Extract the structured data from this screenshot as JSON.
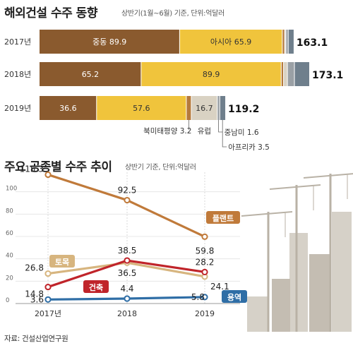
{
  "top": {
    "title": "해외건설 수주 동향",
    "note": "상반기(1월~6월) 기준, 단위:억달러"
  },
  "bottom": {
    "title": "주요 공종별 수주 추이",
    "note": "상반기 기준, 단위:억달러"
  },
  "source": "자료: 건설산업연구원",
  "colors": {
    "middle_east": "#8a5a2e",
    "asia": "#f0c43c",
    "north_america_pacific": "#b57a3c",
    "europe": "#d9d2c3",
    "latin_america": "#9aa0a5",
    "africa": "#6f7f8c",
    "plant": "#c07a3a",
    "civil": "#d7b57f",
    "building": "#c0242a",
    "service": "#2f6ea6"
  },
  "chart_data": [
    {
      "type": "bar",
      "orientation": "horizontal",
      "stacked": true,
      "categories": [
        "2017년",
        "2018년",
        "2019년"
      ],
      "series": [
        {
          "name": "중동",
          "values": [
            89.9,
            65.2,
            36.6
          ],
          "color_key": "middle_east"
        },
        {
          "name": "아시아",
          "values": [
            65.9,
            89.9,
            57.6
          ],
          "color_key": "asia"
        },
        {
          "name": "북미·태평양",
          "values": [
            1.5,
            1.5,
            3.2
          ],
          "color_key": "north_america_pacific"
        },
        {
          "name": "유럽",
          "values": [
            0.8,
            2.5,
            16.7
          ],
          "color_key": "europe"
        },
        {
          "name": "중남미",
          "values": [
            1.5,
            4.5,
            1.6
          ],
          "color_key": "latin_america"
        },
        {
          "name": "아프리카",
          "values": [
            3.5,
            9.5,
            3.5
          ],
          "color_key": "africa"
        }
      ],
      "totals": [
        "163.1",
        "173.1",
        "119.2"
      ],
      "inbar_labels": [
        {
          "row": 0,
          "series": 0,
          "text": "중동  89.9"
        },
        {
          "row": 0,
          "series": 1,
          "text": "아시아  65.9"
        },
        {
          "row": 1,
          "series": 0,
          "text": "65.2"
        },
        {
          "row": 1,
          "series": 1,
          "text": "89.9"
        },
        {
          "row": 2,
          "series": 0,
          "text": "36.6"
        },
        {
          "row": 2,
          "series": 1,
          "text": "57.6"
        },
        {
          "row": 2,
          "series": 3,
          "text": "16.7"
        }
      ],
      "callouts": [
        {
          "series": 2,
          "text": "북미태평양 3.2"
        },
        {
          "series": 3,
          "text": "유럽"
        },
        {
          "series": 4,
          "text": "중남미 1.6"
        },
        {
          "series": 5,
          "text": "아프리카 3.5"
        }
      ],
      "xlim": [
        0,
        173.1
      ]
    },
    {
      "type": "line",
      "categories": [
        "2017년",
        "2018",
        "2019"
      ],
      "ylim": [
        0,
        120
      ],
      "yticks": [
        0,
        20,
        40,
        60,
        80,
        100
      ],
      "grid": true,
      "series": [
        {
          "name": "플랜트",
          "values": [
            115.3,
            92.5,
            59.8
          ],
          "labels": [
            "115.3",
            "92.5",
            "59.8"
          ],
          "color_key": "plant"
        },
        {
          "name": "토목",
          "values": [
            26.8,
            36.5,
            24.1
          ],
          "labels": [
            "26.8",
            "36.5",
            "24.1"
          ],
          "color_key": "civil"
        },
        {
          "name": "건축",
          "values": [
            14.8,
            38.5,
            28.2
          ],
          "labels": [
            "14.8",
            "38.5",
            "28.2"
          ],
          "color_key": "building"
        },
        {
          "name": "용역",
          "values": [
            3.6,
            4.4,
            5.8
          ],
          "labels": [
            "3.6",
            "4.4",
            "5.8"
          ],
          "color_key": "service"
        }
      ]
    }
  ]
}
